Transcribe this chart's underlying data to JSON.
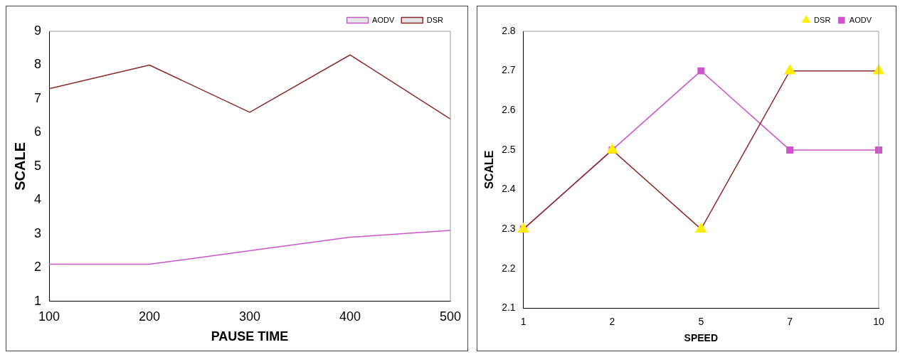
{
  "chart_data": [
    {
      "type": "line",
      "xlabel": "PAUSE TIME",
      "ylabel": "SCALE",
      "categories": [
        "100",
        "200",
        "300",
        "400",
        "500"
      ],
      "ylim": [
        1,
        9
      ],
      "yticks": [
        1,
        2,
        3,
        4,
        5,
        6,
        7,
        8,
        9
      ],
      "grid": false,
      "legend": "top right",
      "marker": "none",
      "series": [
        {
          "name": "DSR",
          "color": "#8b2a2a",
          "values": [
            7.3,
            8.0,
            6.6,
            8.3,
            6.4
          ]
        },
        {
          "name": "AODV",
          "color": "#cc55cc",
          "values": [
            2.1,
            2.1,
            2.5,
            2.9,
            3.1
          ]
        }
      ]
    },
    {
      "type": "line",
      "xlabel": "SPEED",
      "ylabel": "SCALE",
      "categories": [
        "1",
        "2",
        "5",
        "7",
        "10"
      ],
      "ylim": [
        2.1,
        2.8
      ],
      "yticks": [
        {
          "value": 2.1,
          "label": "2.1"
        },
        {
          "value": 2.2,
          "label": "2.2"
        },
        {
          "value": 2.3,
          "label": "2.3"
        },
        {
          "value": 2.4,
          "label": "2.4"
        },
        {
          "value": 2.5,
          "label": "2.5"
        },
        {
          "value": 2.6,
          "label": "2.6"
        },
        {
          "value": 2.7,
          "label": "2.7"
        },
        {
          "value": 2.8,
          "label": "2.8"
        }
      ],
      "grid": false,
      "legend": "top right",
      "series": [
        {
          "name": "AODV",
          "color": "#cc55cc",
          "marker": "square",
          "values": [
            2.3,
            2.5,
            2.7,
            2.5,
            2.5
          ]
        },
        {
          "name": "DSR",
          "color": "#8b2a2a",
          "marker": "triangle",
          "colors": [
            "#ffee00",
            "#ffee00",
            "#ffee00",
            "#ffee00",
            "#ffee00"
          ],
          "values": [
            2.3,
            2.5,
            2.3,
            2.7,
            2.7
          ]
        }
      ]
    }
  ]
}
